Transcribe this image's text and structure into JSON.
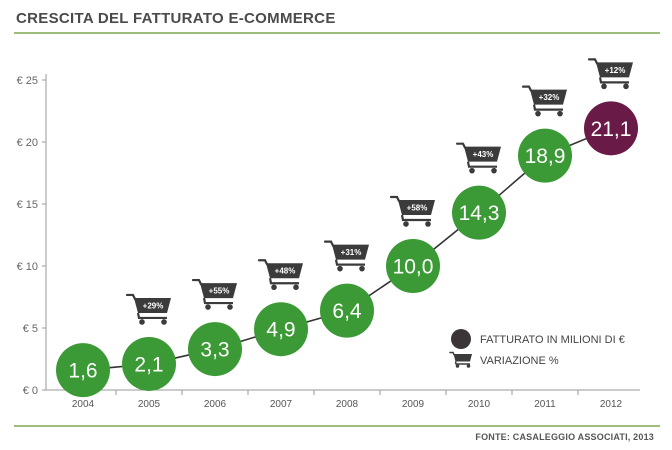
{
  "title": "CRESCITA DEL FATTURATO E-COMMERCE",
  "source": "FONTE: CASALEGGIO ASSOCIATI, 2013",
  "chart_data": {
    "type": "line",
    "title": "CRESCITA DEL FATTURATO E-COMMERCE",
    "x": [
      "2004",
      "2005",
      "2006",
      "2007",
      "2008",
      "2009",
      "2010",
      "2011",
      "2012"
    ],
    "values": [
      1.6,
      2.1,
      3.3,
      4.9,
      6.4,
      10.0,
      14.3,
      18.9,
      21.1
    ],
    "value_labels": [
      "1,6",
      "2,1",
      "3,3",
      "4,9",
      "6,4",
      "10,0",
      "14,3",
      "18,9",
      "21,1"
    ],
    "variations": [
      "",
      "+29%",
      "+55%",
      "+48%",
      "+31%",
      "+58%",
      "+43%",
      "+32%",
      "+12%"
    ],
    "yticks": [
      0,
      5,
      10,
      15,
      20,
      25
    ],
    "ytick_labels": [
      "€ 0",
      "€ 5",
      "€ 10",
      "€ 15",
      "€ 20",
      "€ 25"
    ],
    "ylim": [
      0,
      25
    ],
    "grid": false,
    "legend_position": "bottom-right",
    "legend": [
      {
        "label": "FATTURATO IN MILIONI DI €",
        "icon": "circle"
      },
      {
        "label": "VARIAZIONE %",
        "icon": "cart-icon"
      }
    ],
    "colors": {
      "green": "#3c9a36",
      "highlight": "#6a1a47",
      "cart": "#3b3b3b",
      "line": "#333333"
    }
  }
}
